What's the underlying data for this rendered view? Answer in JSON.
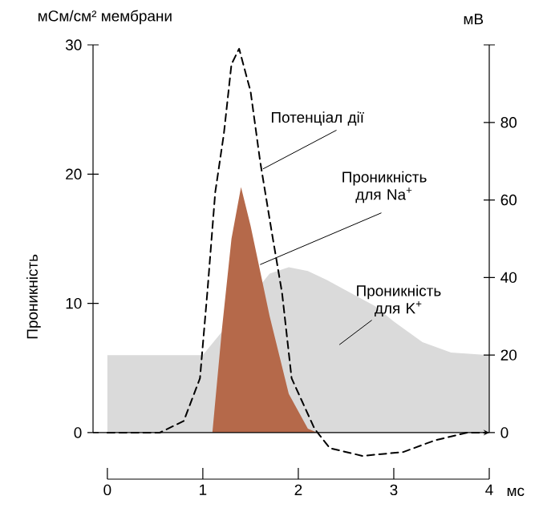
{
  "chart_data": {
    "type": "area",
    "ylabel": "Проникність",
    "y2label": "мВ",
    "xlabel": "мс",
    "annotations": [
      "мСм/см² мембрани"
    ],
    "xlim": [
      -0.15,
      4
    ],
    "xticks": [
      0,
      1,
      2,
      3,
      4
    ],
    "ylim": [
      -3.6,
      30
    ],
    "yticks": [
      0,
      10,
      20,
      30
    ],
    "y2lim": [
      -12,
      100
    ],
    "y2ticks": [
      0,
      20,
      40,
      60,
      80,
      {
        "value": 100,
        "label": null
      }
    ],
    "series": [
      {
        "name": "Проникність для K$^{+}$",
        "color": "#dadada",
        "x": [
          0,
          0.5,
          1.0,
          1.2,
          1.5,
          1.7,
          1.9,
          2.1,
          2.3,
          2.5,
          2.8,
          3.0,
          3.3,
          3.6,
          4.0
        ],
        "values": [
          6,
          6,
          6,
          null,
          null,
          12.3,
          12.8,
          12.5,
          11.8,
          11,
          9.8,
          8.6,
          7,
          6.2,
          6
        ]
      },
      {
        "name": "Проникність для Na$^{+}$",
        "color": "#b5694a",
        "x": [
          1.1,
          1.2,
          1.3,
          1.4,
          1.5,
          1.7,
          1.9,
          2.1,
          2.2
        ],
        "values": [
          0,
          8,
          15,
          19,
          16,
          9,
          3,
          0.3,
          0
        ]
      },
      {
        "name": "Потенціал дії",
        "type": "line",
        "axis": "y2",
        "line_style": "dashed",
        "color": "#000000",
        "x": [
          0,
          0.55,
          0.8,
          0.97,
          1.05,
          1.13,
          1.22,
          1.3,
          1.38,
          1.5,
          1.6,
          1.72,
          1.83,
          1.93,
          2.17,
          2.33,
          2.67,
          3.1,
          3.43,
          3.77,
          3.95
        ],
        "values": [
          0,
          0,
          3,
          14,
          37,
          62,
          77,
          95,
          99,
          88,
          70,
          52,
          36,
          14,
          1,
          -4,
          -6,
          -5,
          -2,
          0,
          0
        ]
      }
    ]
  }
}
